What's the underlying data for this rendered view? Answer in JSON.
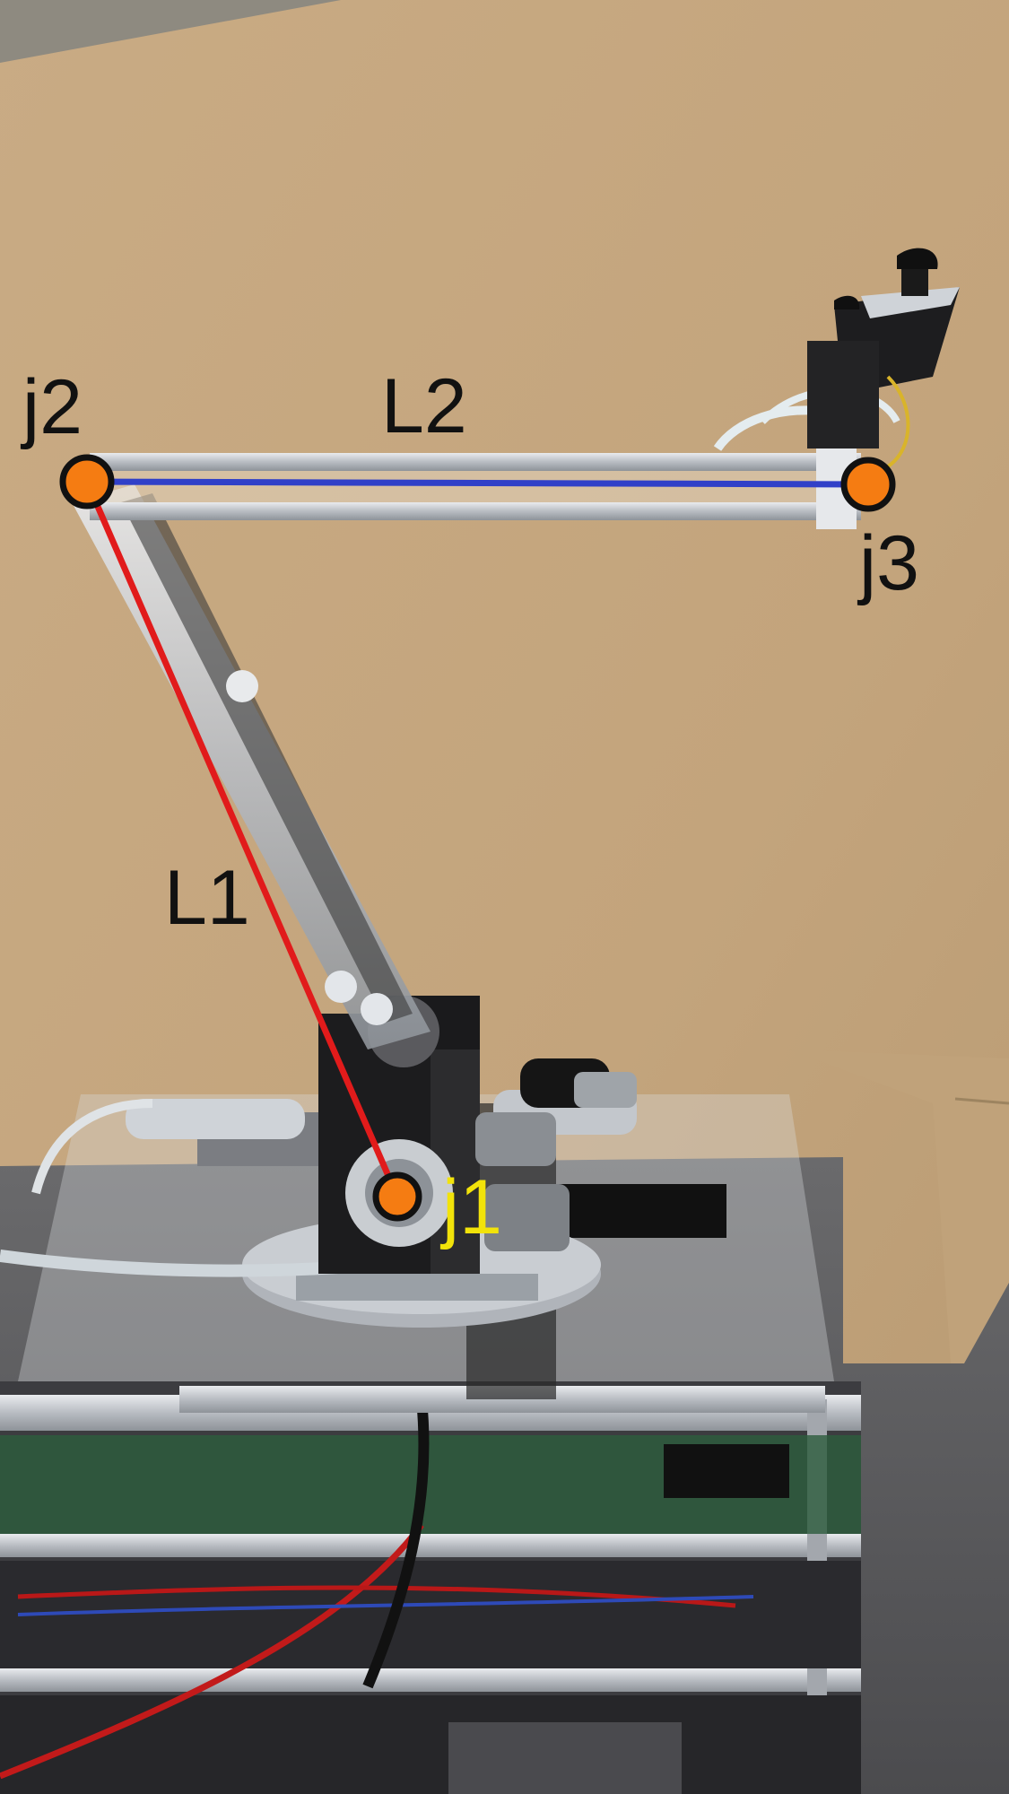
{
  "annotations": {
    "joints": [
      {
        "id": "j1",
        "label": "j1"
      },
      {
        "id": "j2",
        "label": "j2"
      },
      {
        "id": "j3",
        "label": "j3"
      }
    ],
    "links": [
      {
        "id": "L1",
        "label": "L1",
        "from": "j1",
        "to": "j2",
        "color": "#e11b1b"
      },
      {
        "id": "L2",
        "label": "L2",
        "from": "j2",
        "to": "j3",
        "color": "#3040c8"
      }
    ],
    "joint_color": "#f57c12",
    "joint_label_colors": {
      "j1": "#f2e30a",
      "j2": "#111111",
      "j3": "#111111"
    }
  }
}
